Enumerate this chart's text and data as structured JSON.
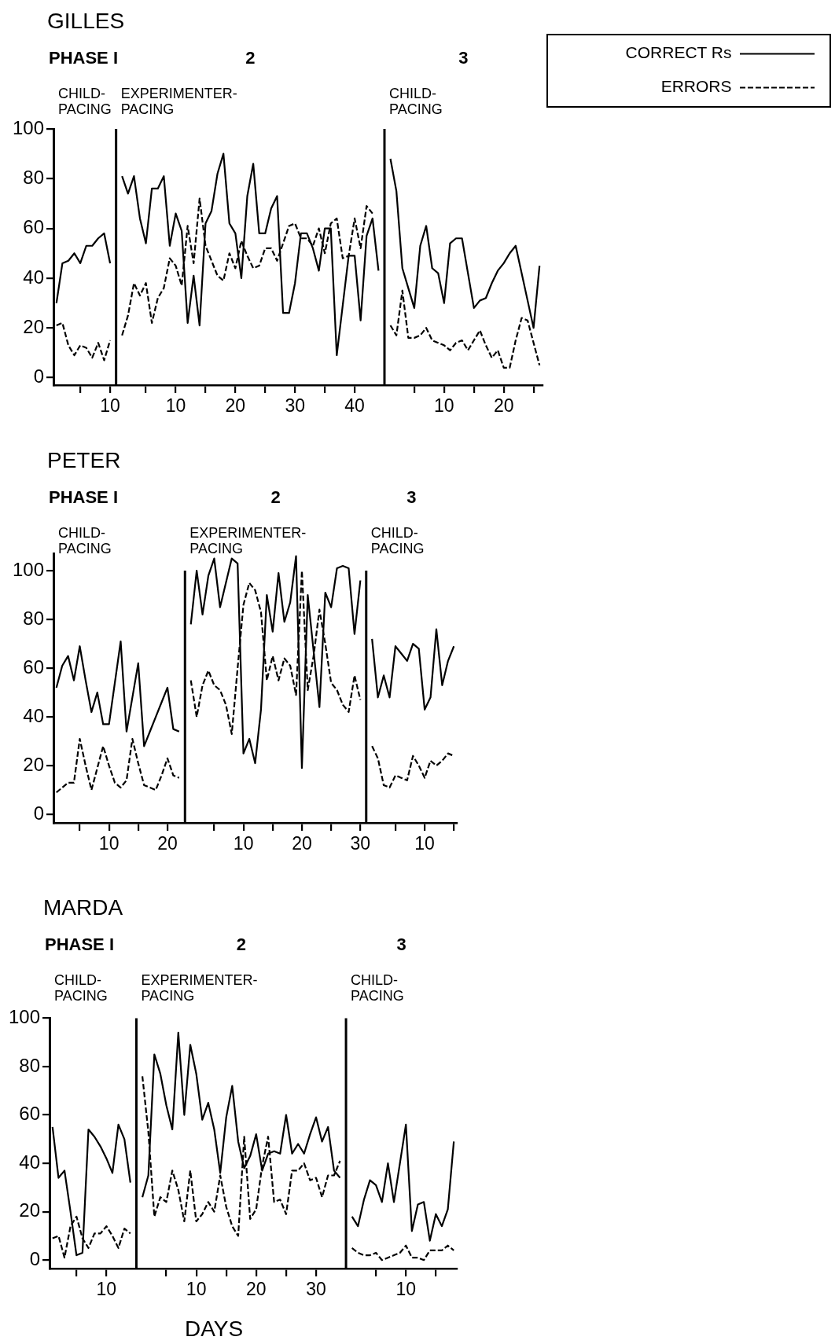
{
  "chart_data": [
    {
      "type": "line",
      "title": "GILLES",
      "annotations": [
        "PHASE I",
        "CHILD-PACING",
        "2",
        "EXPERIMENTER-PACING",
        "3",
        "CHILD-PACING"
      ],
      "categories": [
        null,
        null,
        null,
        null,
        null,
        null,
        null,
        null,
        null,
        "10",
        null,
        null,
        null,
        null,
        null,
        null,
        null,
        null,
        null,
        null,
        "10",
        null,
        null,
        null,
        null,
        null,
        null,
        null,
        null,
        null,
        "20",
        null,
        null,
        null,
        null,
        null,
        null,
        null,
        null,
        null,
        "30",
        null,
        null,
        null,
        null,
        null,
        null,
        null,
        null,
        null,
        "40",
        null,
        null,
        null,
        null,
        null,
        null,
        null,
        null,
        null,
        null,
        null,
        null,
        null,
        null,
        "10",
        null,
        null,
        null,
        null,
        null,
        null,
        null,
        null,
        null,
        "20",
        null,
        null,
        null,
        null,
        null,
        null
      ],
      "ylim": [
        -3,
        100
      ],
      "yticks": [
        0,
        20,
        40,
        60,
        80,
        100
      ],
      "marker": "none",
      "legend": "top right",
      "series": [
        {
          "name": "CORRECT Rs",
          "color": "#000000",
          "line_style": "solid",
          "values": [
            30,
            46,
            47,
            50,
            46,
            53,
            53,
            56,
            58,
            46,
            null,
            81,
            74,
            81,
            64,
            54,
            76,
            76,
            81,
            53,
            66,
            59,
            22,
            41,
            21,
            62,
            67,
            82,
            90,
            62,
            58,
            40,
            73,
            86,
            58,
            58,
            68,
            73,
            26,
            26,
            38,
            58,
            58,
            52,
            43,
            60,
            60,
            9,
            29,
            49,
            49,
            23,
            57,
            64,
            43,
            null,
            88,
            75,
            44,
            36,
            28,
            53,
            61,
            44,
            42,
            30,
            54,
            56,
            56,
            42,
            28,
            31,
            32,
            38,
            43,
            46,
            50,
            53,
            42,
            31,
            20,
            45
          ]
        },
        {
          "name": "ERRORS",
          "color": "#000000",
          "line_style": "dashed",
          "values": [
            21,
            22,
            13,
            9,
            13,
            12,
            8,
            14,
            7,
            15,
            null,
            17,
            25,
            38,
            33,
            38,
            22,
            32,
            36,
            48,
            45,
            37,
            61,
            46,
            72,
            53,
            47,
            41,
            39,
            50,
            44,
            55,
            49,
            44,
            45,
            52,
            52,
            47,
            54,
            61,
            62,
            56,
            56,
            53,
            60,
            50,
            62,
            64,
            48,
            49,
            64,
            52,
            69,
            66,
            null,
            null,
            21,
            17,
            35,
            16,
            16,
            17,
            20,
            15,
            14,
            13,
            11,
            14,
            15,
            11,
            15,
            19,
            13,
            8,
            11,
            4,
            4,
            15,
            24,
            23,
            14,
            5
          ]
        }
      ]
    },
    {
      "type": "line",
      "title": "PETER",
      "annotations": [
        "PHASE I",
        "CHILD-PACING",
        "2",
        "EXPERIMENTER-PACING",
        "3",
        "CHILD-PACING"
      ],
      "categories": [
        null,
        null,
        null,
        null,
        null,
        null,
        null,
        null,
        null,
        "10",
        null,
        null,
        null,
        null,
        null,
        null,
        null,
        null,
        null,
        "20",
        null,
        null,
        null,
        null,
        null,
        null,
        null,
        null,
        null,
        null,
        null,
        null,
        "10",
        null,
        null,
        null,
        null,
        null,
        null,
        null,
        null,
        null,
        "20",
        null,
        null,
        null,
        null,
        null,
        null,
        null,
        null,
        null,
        "30",
        null,
        null,
        null,
        null,
        null,
        null,
        null,
        null,
        null,
        null,
        "10",
        null,
        null,
        null,
        null,
        null
      ],
      "ylim": [
        -3.5,
        107
      ],
      "yticks": [
        0,
        20,
        40,
        60,
        80,
        100
      ],
      "marker": "none",
      "series": [
        {
          "color": "#000000",
          "line_style": "solid",
          "values": [
            52,
            61,
            65,
            55,
            69,
            55,
            42,
            50,
            37,
            37,
            54,
            71,
            34,
            48,
            62,
            28,
            34,
            40,
            46,
            52,
            35,
            34,
            null,
            78,
            100,
            82,
            98,
            105,
            85,
            95,
            105,
            103,
            25,
            31,
            21,
            43,
            90,
            75,
            99,
            79,
            87,
            106,
            19,
            90,
            67,
            44,
            91,
            85,
            101,
            102,
            101,
            74,
            96,
            null,
            72,
            48,
            57,
            48,
            69,
            66,
            63,
            70,
            68,
            43,
            48,
            76,
            53,
            63,
            69
          ]
        },
        {
          "color": "#000000",
          "line_style": "dashed",
          "values": [
            9,
            11,
            13,
            13,
            31,
            20,
            10,
            19,
            28,
            20,
            13,
            11,
            14,
            31,
            21,
            12,
            11,
            10,
            16,
            23,
            16,
            15,
            null,
            55,
            40,
            53,
            59,
            53,
            51,
            45,
            33,
            60,
            86,
            95,
            92,
            83,
            55,
            65,
            55,
            64,
            61,
            49,
            100,
            51,
            65,
            84,
            70,
            54,
            51,
            45,
            42,
            57,
            47,
            null,
            28,
            23,
            12,
            11,
            16,
            15,
            14,
            24,
            20,
            15,
            22,
            20,
            22,
            25,
            24
          ]
        }
      ]
    },
    {
      "type": "line",
      "title": "MARDA",
      "annotations": [
        "PHASE I",
        "CHILD-PACING",
        "2",
        "EXPERIMENTER-PACING",
        "3",
        "CHILD-PACING"
      ],
      "xlabel": "DAYS",
      "categories": [
        null,
        null,
        null,
        null,
        null,
        null,
        null,
        null,
        null,
        "10",
        null,
        null,
        null,
        null,
        null,
        null,
        null,
        null,
        null,
        null,
        null,
        null,
        null,
        null,
        "10",
        null,
        null,
        null,
        null,
        null,
        null,
        null,
        null,
        null,
        "20",
        null,
        null,
        null,
        null,
        null,
        null,
        null,
        null,
        null,
        "30",
        null,
        null,
        null,
        null,
        null,
        null,
        null,
        null,
        null,
        null,
        null,
        null,
        null,
        null,
        "10",
        null,
        null,
        null,
        null,
        null,
        null,
        null,
        null
      ],
      "ylim": [
        -3.5,
        100
      ],
      "yticks": [
        0,
        20,
        40,
        60,
        80,
        100
      ],
      "marker": "none",
      "series": [
        {
          "color": "#000000",
          "line_style": "solid",
          "values": [
            55,
            34,
            37,
            20,
            2,
            3,
            54,
            51,
            47,
            42,
            36,
            56,
            50,
            32,
            null,
            26,
            35,
            85,
            77,
            64,
            54,
            94,
            60,
            89,
            77,
            58,
            65,
            54,
            36,
            59,
            72,
            49,
            38,
            43,
            52,
            37,
            44,
            45,
            44,
            60,
            44,
            48,
            44,
            52,
            59,
            49,
            55,
            37,
            34,
            null,
            18,
            14,
            25,
            33,
            31,
            24,
            40,
            24,
            40,
            56,
            12,
            23,
            24,
            8,
            19,
            14,
            21,
            49
          ]
        },
        {
          "color": "#000000",
          "line_style": "dashed",
          "values": [
            9,
            10,
            1,
            14,
            18,
            9,
            5,
            11,
            11,
            14,
            10,
            5,
            13,
            11,
            null,
            76,
            53,
            18,
            26,
            24,
            37,
            29,
            16,
            37,
            16,
            19,
            24,
            20,
            35,
            22,
            14,
            10,
            51,
            17,
            21,
            39,
            51,
            24,
            25,
            19,
            37,
            37,
            40,
            33,
            34,
            26,
            35,
            35,
            41,
            null,
            5,
            3,
            2,
            2,
            3,
            0,
            1,
            2,
            3,
            6,
            1,
            1,
            0,
            4,
            4,
            4,
            6,
            4
          ]
        }
      ]
    }
  ]
}
